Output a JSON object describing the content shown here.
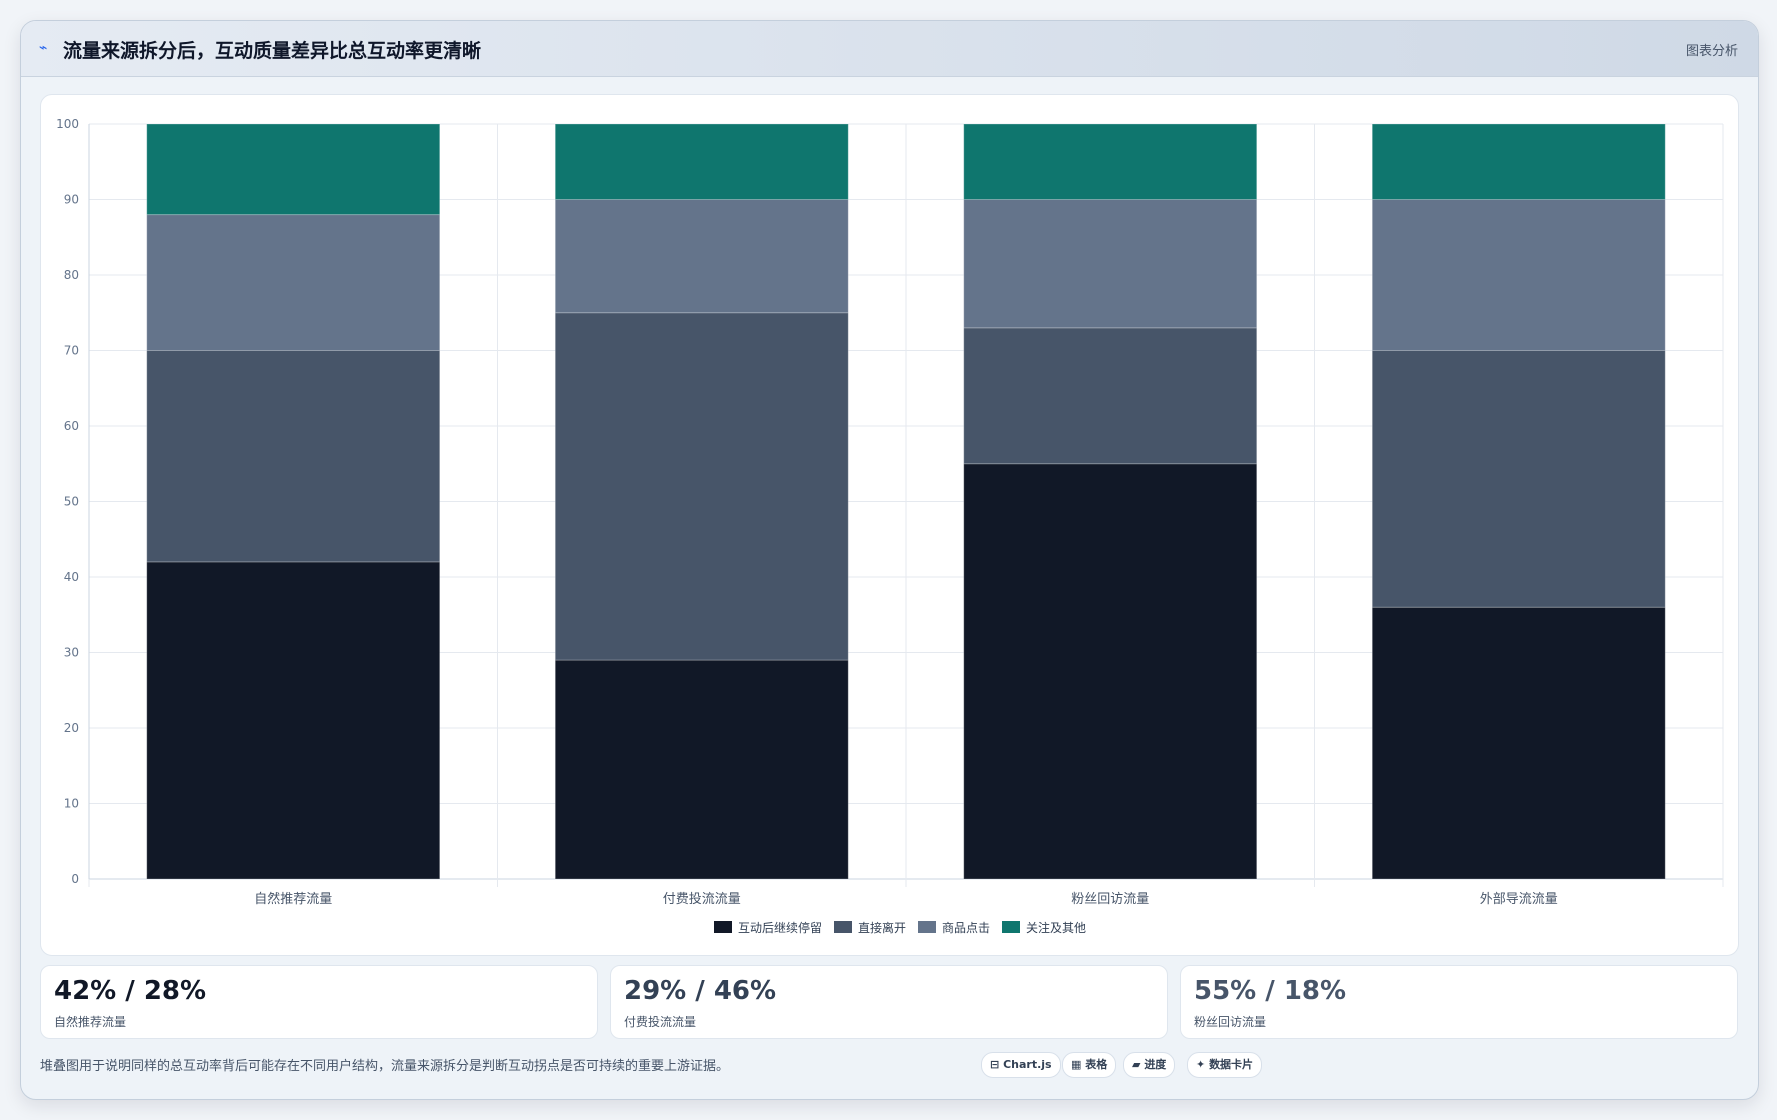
{
  "header": {
    "icon": "chart-line-icon",
    "title": "流量来源拆分后，互动质量差异比总互动率更清晰",
    "right_label": "图表分析"
  },
  "chart_data": {
    "type": "bar",
    "stacked": true,
    "categories": [
      "自然推荐流量",
      "付费投流流量",
      "粉丝回访流量",
      "外部导流流量"
    ],
    "series": [
      {
        "name": "互动后继续停留",
        "values": [
          42,
          29,
          55,
          36
        ],
        "color": "#111827"
      },
      {
        "name": "直接离开",
        "values": [
          28,
          46,
          18,
          34
        ],
        "color": "#475569"
      },
      {
        "name": "商品点击",
        "values": [
          18,
          15,
          17,
          20
        ],
        "color": "#64748b"
      },
      {
        "name": "关注及其他",
        "values": [
          12,
          10,
          10,
          10
        ],
        "color": "#0f766e"
      }
    ],
    "ylim": [
      0,
      100
    ],
    "yticks": [
      0,
      10,
      20,
      30,
      40,
      50,
      60,
      70,
      80,
      90,
      100
    ],
    "grid": true,
    "legend": "bottom"
  },
  "stats": [
    {
      "value": "42% / 28%",
      "label": "自然推荐流量",
      "color": "#111827"
    },
    {
      "value": "29% / 46%",
      "label": "付费投流流量",
      "color": "#334155"
    },
    {
      "value": "55% / 18%",
      "label": "粉丝回访流量",
      "color": "#475569"
    }
  ],
  "footer": {
    "note": "堆叠图用于说明同样的总互动率背后可能存在不同用户结构，流量来源拆分是判断互动拐点是否可持续的重要上游证据。",
    "pills": [
      {
        "icon": "chart-icon",
        "glyph": "⊟",
        "label": "Chart.js"
      },
      {
        "icon": "table-icon",
        "glyph": "▦",
        "label": "表格"
      },
      {
        "icon": "progress-icon",
        "glyph": "▰",
        "label": "进度"
      },
      {
        "icon": "data-card-icon",
        "glyph": "✦",
        "label": "数据卡片"
      }
    ]
  }
}
